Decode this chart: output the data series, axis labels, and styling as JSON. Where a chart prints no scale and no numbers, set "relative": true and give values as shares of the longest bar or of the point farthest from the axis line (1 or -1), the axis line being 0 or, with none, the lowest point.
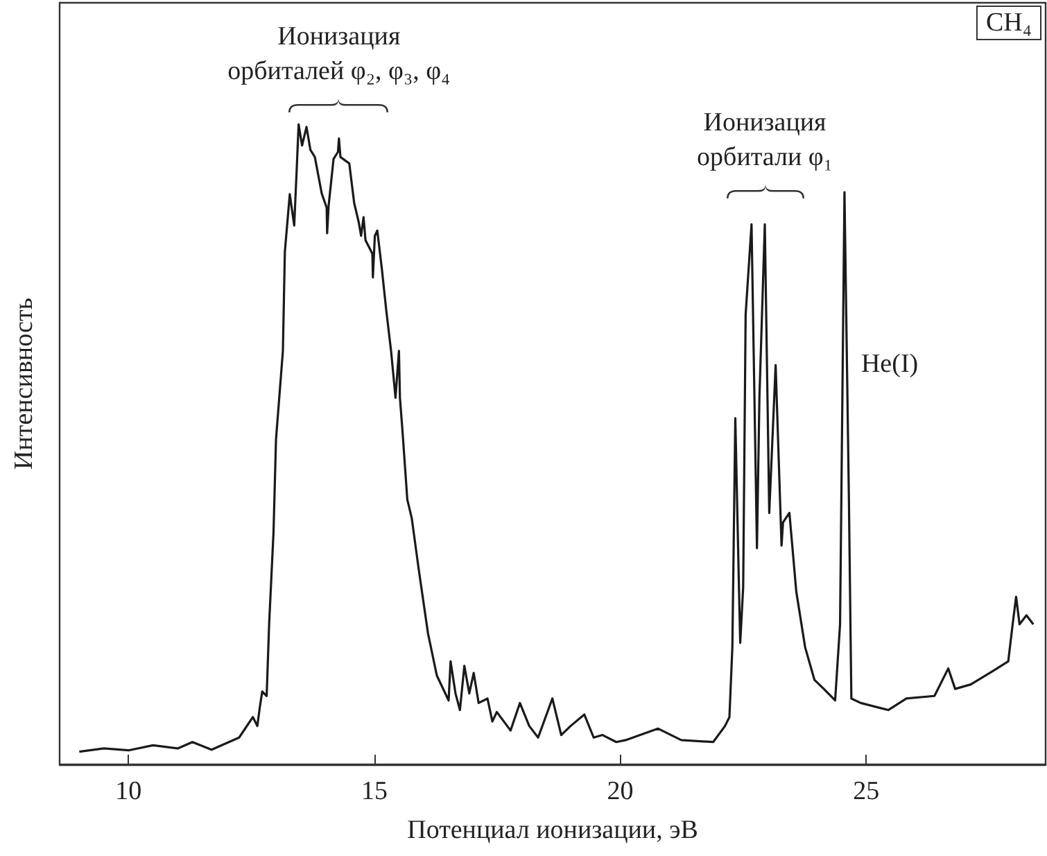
{
  "chart_data": {
    "type": "line",
    "relative": true,
    "xlabel": "Потенциал ионизации, эВ",
    "ylabel": "Интенсивность",
    "xlim": [
      8.6,
      28.65
    ],
    "xticks": [
      10,
      15,
      20,
      25
    ],
    "marker": "none",
    "line_style": "solid",
    "annotations": [
      {
        "text": "Ионизация орбиталей  φ₂, φ₃, φ₄",
        "x": 14.28,
        "y": 0.978
      },
      {
        "text": "Ионизация орбитали φ₁",
        "x": 22.94,
        "y": 0.844
      },
      {
        "text": "He(I)",
        "x": 24.56,
        "y": 0.62
      },
      "CH₄"
    ],
    "series": [
      {
        "color": "#1a1a1a",
        "x": [
          9.0,
          9.5,
          10.0,
          10.5,
          11.0,
          11.3,
          11.69,
          12.25,
          12.53,
          12.62,
          12.67,
          12.72,
          12.81,
          12.86,
          12.95,
          13.0,
          13.14,
          13.18,
          13.28,
          13.37,
          13.42,
          13.46,
          13.53,
          13.62,
          13.7,
          13.79,
          13.93,
          14.03,
          14.04,
          14.07,
          14.17,
          14.26,
          14.28,
          14.31,
          14.49,
          14.59,
          14.68,
          14.73,
          14.78,
          14.82,
          14.96,
          14.97,
          15.01,
          15.06,
          15.15,
          15.24,
          15.34,
          15.43,
          15.5,
          15.52,
          15.57,
          15.67,
          15.76,
          15.9,
          16.09,
          16.27,
          16.51,
          16.55,
          16.65,
          16.74,
          16.83,
          16.93,
          17.02,
          17.12,
          17.3,
          17.4,
          17.49,
          17.77,
          17.96,
          18.15,
          18.33,
          18.62,
          18.8,
          18.99,
          19.27,
          19.46,
          19.64,
          19.92,
          20.11,
          20.77,
          21.24,
          21.89,
          22.13,
          22.22,
          22.28,
          22.34,
          22.41,
          22.44,
          22.5,
          22.55,
          22.67,
          22.78,
          22.83,
          22.94,
          23.03,
          23.16,
          23.28,
          23.31,
          23.44,
          23.58,
          23.76,
          23.95,
          24.14,
          24.37,
          24.47,
          24.56,
          24.65,
          24.7,
          24.89,
          25.45,
          25.82,
          26.39,
          26.67,
          26.81,
          27.13,
          27.6,
          27.89,
          27.98,
          28.05,
          28.12,
          28.26,
          28.4
        ],
        "values": [
          0.02,
          0.025,
          0.022,
          0.03,
          0.025,
          0.035,
          0.023,
          0.042,
          0.074,
          0.06,
          0.089,
          0.114,
          0.107,
          0.219,
          0.364,
          0.508,
          0.646,
          0.801,
          0.891,
          0.842,
          0.928,
          1,
          0.967,
          0.996,
          0.96,
          0.949,
          0.892,
          0.87,
          0.83,
          0.873,
          0.946,
          0.957,
          0.978,
          0.949,
          0.939,
          0.877,
          0.848,
          0.826,
          0.855,
          0.819,
          0.798,
          0.761,
          0.826,
          0.834,
          0.776,
          0.711,
          0.646,
          0.573,
          0.646,
          0.573,
          0.523,
          0.414,
          0.385,
          0.306,
          0.205,
          0.139,
          0.1,
          0.161,
          0.111,
          0.085,
          0.154,
          0.111,
          0.143,
          0.096,
          0.103,
          0.067,
          0.082,
          0.053,
          0.096,
          0.06,
          0.042,
          0.103,
          0.046,
          0.06,
          0.078,
          0.042,
          0.046,
          0.035,
          0.038,
          0.056,
          0.038,
          0.035,
          0.06,
          0.074,
          0.183,
          0.541,
          0.291,
          0.19,
          0.277,
          0.703,
          0.844,
          0.338,
          0.573,
          0.844,
          0.393,
          0.624,
          0.342,
          0.378,
          0.393,
          0.27,
          0.183,
          0.132,
          0.118,
          0.1,
          0.219,
          0.894,
          0.414,
          0.103,
          0.096,
          0.085,
          0.103,
          0.107,
          0.15,
          0.118,
          0.125,
          0.147,
          0.161,
          0.219,
          0.262,
          0.219,
          0.233,
          0.219
        ]
      }
    ]
  }
}
